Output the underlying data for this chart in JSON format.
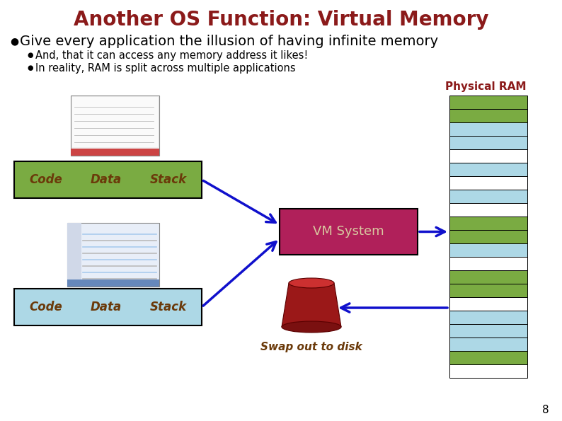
{
  "title": "Another OS Function: Virtual Memory",
  "title_color": "#8B1A1A",
  "title_fontsize": 20,
  "bullet1": "Give every application the illusion of having infinite memory",
  "bullet1_fontsize": 14,
  "bullet2": "And, that it can access any memory address it likes!",
  "bullet3": "In reality, RAM is split across multiple applications",
  "sub_bullet_fontsize": 10.5,
  "background_color": "#FFFFFF",
  "green_box_color": "#7AAB42",
  "blue_box_color": "#ADD8E6",
  "vm_box_color": "#B0205A",
  "arrow_color": "#1010CC",
  "green_text_color": "#6B3A0A",
  "blue_text_color": "#6B3A0A",
  "vm_text_color": "#D8C8A0",
  "physical_ram_label": "Physical RAM",
  "physical_ram_label_color": "#8B1A1A",
  "vm_system_label": "VM System",
  "swap_label": "Swap out to disk",
  "swap_label_color": "#6B3A0A",
  "page_number": "8",
  "ram_green_color": "#7AAB42",
  "ram_blue_color": "#ADD8E6",
  "ram_white_color": "#FFFFFF",
  "ram_stripes": [
    [
      "#7AAB42",
      19
    ],
    [
      "#7AAB42",
      19
    ],
    [
      "#ADD8E6",
      19
    ],
    [
      "#ADD8E6",
      19
    ],
    [
      "#FFFFFF",
      19
    ],
    [
      "#ADD8E6",
      19
    ],
    [
      "#FFFFFF",
      19
    ],
    [
      "#ADD8E6",
      19
    ],
    [
      "#FFFFFF",
      19
    ],
    [
      "#7AAB42",
      19
    ],
    [
      "#7AAB42",
      19
    ],
    [
      "#ADD8E6",
      19
    ],
    [
      "#FFFFFF",
      19
    ],
    [
      "#7AAB42",
      19
    ],
    [
      "#7AAB42",
      19
    ],
    [
      "#FFFFFF",
      19
    ],
    [
      "#ADD8E6",
      19
    ],
    [
      "#ADD8E6",
      19
    ],
    [
      "#ADD8E6",
      19
    ],
    [
      "#7AAB42",
      19
    ],
    [
      "#FFFFFF",
      19
    ]
  ]
}
